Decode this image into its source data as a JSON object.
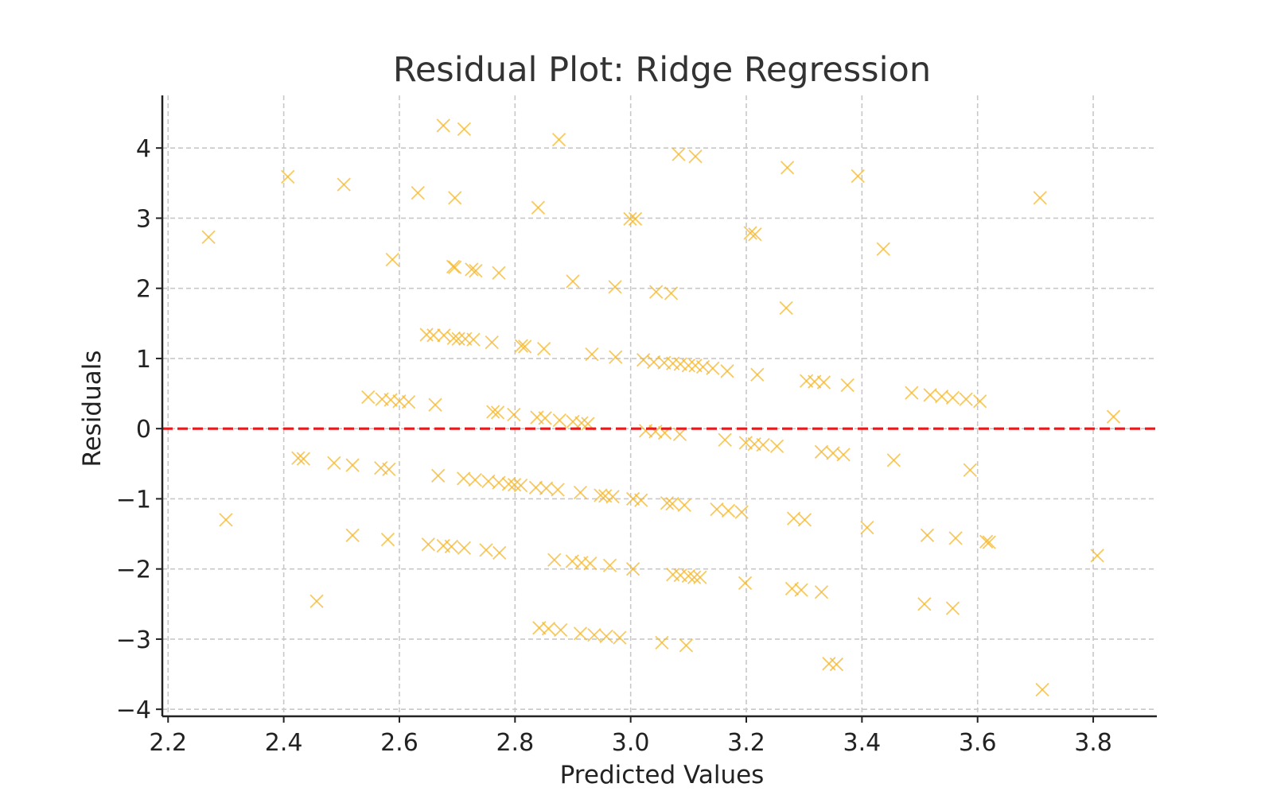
{
  "chart_data": {
    "type": "scatter",
    "title": "Residual Plot: Ridge Regression",
    "xlabel": "Predicted Values",
    "ylabel": "Residuals",
    "xlim": [
      2.19,
      3.91
    ],
    "ylim": [
      -4.1,
      4.75
    ],
    "x_ticks": [
      2.2,
      2.4,
      2.6,
      2.8,
      3.0,
      3.2,
      3.4,
      3.6,
      3.8
    ],
    "x_tick_labels": [
      "2.2",
      "2.4",
      "2.6",
      "2.8",
      "3.0",
      "3.2",
      "3.4",
      "3.6",
      "3.8"
    ],
    "y_ticks": [
      -4,
      -3,
      -2,
      -1,
      0,
      1,
      2,
      3,
      4
    ],
    "y_tick_labels": [
      "−4",
      "−3",
      "−2",
      "−1",
      "0",
      "1",
      "2",
      "3",
      "4"
    ],
    "grid": true,
    "marker": "x",
    "marker_color": "#f5b72a",
    "reference_line": {
      "y": 0,
      "style": "dashed",
      "color": "#e8191b"
    },
    "series": [
      {
        "points": [
          [
            2.676,
            4.32
          ],
          [
            2.712,
            4.27
          ],
          [
            2.876,
            4.12
          ],
          [
            3.083,
            3.91
          ],
          [
            3.112,
            3.88
          ],
          [
            3.271,
            3.72
          ],
          [
            2.407,
            3.59
          ],
          [
            3.393,
            3.6
          ],
          [
            2.504,
            3.48
          ],
          [
            2.632,
            3.36
          ],
          [
            2.696,
            3.29
          ],
          [
            3.708,
            3.29
          ],
          [
            2.84,
            3.15
          ],
          [
            2.999,
            2.99
          ],
          [
            3.008,
            2.99
          ],
          [
            3.207,
            2.79
          ],
          [
            3.215,
            2.77
          ],
          [
            2.27,
            2.73
          ],
          [
            3.437,
            2.56
          ],
          [
            2.588,
            2.41
          ],
          [
            2.693,
            2.31
          ],
          [
            2.696,
            2.3
          ],
          [
            2.725,
            2.27
          ],
          [
            2.732,
            2.25
          ],
          [
            2.772,
            2.22
          ],
          [
            2.9,
            2.1
          ],
          [
            2.973,
            2.02
          ],
          [
            3.044,
            1.95
          ],
          [
            3.07,
            1.93
          ],
          [
            3.269,
            1.72
          ],
          [
            2.647,
            1.34
          ],
          [
            2.659,
            1.33
          ],
          [
            2.677,
            1.33
          ],
          [
            2.694,
            1.29
          ],
          [
            2.702,
            1.28
          ],
          [
            2.714,
            1.28
          ],
          [
            2.728,
            1.27
          ],
          [
            2.76,
            1.23
          ],
          [
            2.811,
            1.18
          ],
          [
            2.817,
            1.17
          ],
          [
            2.85,
            1.14
          ],
          [
            2.933,
            1.06
          ],
          [
            2.974,
            1.02
          ],
          [
            3.022,
            0.98
          ],
          [
            3.04,
            0.95
          ],
          [
            3.058,
            0.94
          ],
          [
            3.073,
            0.93
          ],
          [
            3.086,
            0.92
          ],
          [
            3.1,
            0.9
          ],
          [
            3.112,
            0.9
          ],
          [
            3.125,
            0.88
          ],
          [
            3.142,
            0.86
          ],
          [
            3.167,
            0.82
          ],
          [
            3.219,
            0.77
          ],
          [
            3.304,
            0.68
          ],
          [
            3.318,
            0.67
          ],
          [
            3.334,
            0.66
          ],
          [
            3.375,
            0.62
          ],
          [
            3.486,
            0.51
          ],
          [
            3.518,
            0.48
          ],
          [
            3.538,
            0.46
          ],
          [
            3.557,
            0.44
          ],
          [
            3.58,
            0.42
          ],
          [
            3.604,
            0.39
          ],
          [
            2.546,
            0.45
          ],
          [
            2.57,
            0.42
          ],
          [
            2.585,
            0.41
          ],
          [
            2.6,
            0.39
          ],
          [
            2.616,
            0.38
          ],
          [
            2.662,
            0.34
          ],
          [
            2.762,
            0.24
          ],
          [
            2.77,
            0.23
          ],
          [
            2.798,
            0.2
          ],
          [
            2.838,
            0.16
          ],
          [
            2.852,
            0.15
          ],
          [
            2.877,
            0.12
          ],
          [
            2.9,
            0.1
          ],
          [
            2.915,
            0.08
          ],
          [
            2.926,
            0.07
          ],
          [
            3.835,
            0.17
          ],
          [
            3.026,
            -0.03
          ],
          [
            3.043,
            -0.04
          ],
          [
            3.059,
            -0.06
          ],
          [
            3.085,
            -0.08
          ],
          [
            3.163,
            -0.16
          ],
          [
            3.199,
            -0.2
          ],
          [
            3.214,
            -0.22
          ],
          [
            3.229,
            -0.23
          ],
          [
            3.253,
            -0.25
          ],
          [
            3.33,
            -0.33
          ],
          [
            3.35,
            -0.35
          ],
          [
            3.368,
            -0.37
          ],
          [
            3.455,
            -0.45
          ],
          [
            3.587,
            -0.59
          ],
          [
            2.425,
            -0.42
          ],
          [
            2.434,
            -0.43
          ],
          [
            2.487,
            -0.49
          ],
          [
            2.519,
            -0.52
          ],
          [
            2.568,
            -0.56
          ],
          [
            2.582,
            -0.58
          ],
          [
            2.667,
            -0.67
          ],
          [
            2.711,
            -0.71
          ],
          [
            2.731,
            -0.73
          ],
          [
            2.754,
            -0.75
          ],
          [
            2.772,
            -0.77
          ],
          [
            2.789,
            -0.79
          ],
          [
            2.799,
            -0.8
          ],
          [
            2.81,
            -0.81
          ],
          [
            2.836,
            -0.84
          ],
          [
            2.854,
            -0.85
          ],
          [
            2.874,
            -0.87
          ],
          [
            2.913,
            -0.91
          ],
          [
            2.948,
            -0.95
          ],
          [
            2.956,
            -0.96
          ],
          [
            2.969,
            -0.97
          ],
          [
            3.004,
            -1.0
          ],
          [
            3.018,
            -1.02
          ],
          [
            3.063,
            -1.06
          ],
          [
            3.072,
            -1.07
          ],
          [
            3.093,
            -1.09
          ],
          [
            3.149,
            -1.15
          ],
          [
            3.169,
            -1.17
          ],
          [
            3.192,
            -1.19
          ],
          [
            3.282,
            -1.28
          ],
          [
            3.301,
            -1.3
          ],
          [
            3.409,
            -1.41
          ],
          [
            2.3,
            -1.3
          ],
          [
            3.513,
            -1.52
          ],
          [
            3.562,
            -1.56
          ],
          [
            3.615,
            -1.61
          ],
          [
            3.62,
            -1.62
          ],
          [
            2.519,
            -1.52
          ],
          [
            2.58,
            -1.58
          ],
          [
            2.65,
            -1.65
          ],
          [
            2.676,
            -1.67
          ],
          [
            2.69,
            -1.68
          ],
          [
            2.712,
            -1.7
          ],
          [
            2.75,
            -1.73
          ],
          [
            2.773,
            -1.77
          ],
          [
            2.868,
            -1.87
          ],
          [
            2.899,
            -1.89
          ],
          [
            2.915,
            -1.91
          ],
          [
            2.93,
            -1.92
          ],
          [
            2.964,
            -1.95
          ],
          [
            3.004,
            -2.0
          ],
          [
            3.073,
            -2.08
          ],
          [
            3.086,
            -2.09
          ],
          [
            3.1,
            -2.1
          ],
          [
            3.11,
            -2.12
          ],
          [
            3.12,
            -2.12
          ],
          [
            3.198,
            -2.2
          ],
          [
            3.279,
            -2.28
          ],
          [
            3.295,
            -2.3
          ],
          [
            3.33,
            -2.33
          ],
          [
            3.807,
            -1.81
          ],
          [
            2.457,
            -2.46
          ],
          [
            3.508,
            -2.5
          ],
          [
            3.557,
            -2.56
          ],
          [
            2.842,
            -2.84
          ],
          [
            2.858,
            -2.85
          ],
          [
            2.879,
            -2.87
          ],
          [
            2.913,
            -2.92
          ],
          [
            2.937,
            -2.94
          ],
          [
            2.958,
            -2.96
          ],
          [
            2.981,
            -2.98
          ],
          [
            3.054,
            -3.05
          ],
          [
            3.096,
            -3.09
          ],
          [
            3.343,
            -3.35
          ],
          [
            3.356,
            -3.36
          ],
          [
            3.712,
            -3.72
          ]
        ]
      }
    ]
  }
}
